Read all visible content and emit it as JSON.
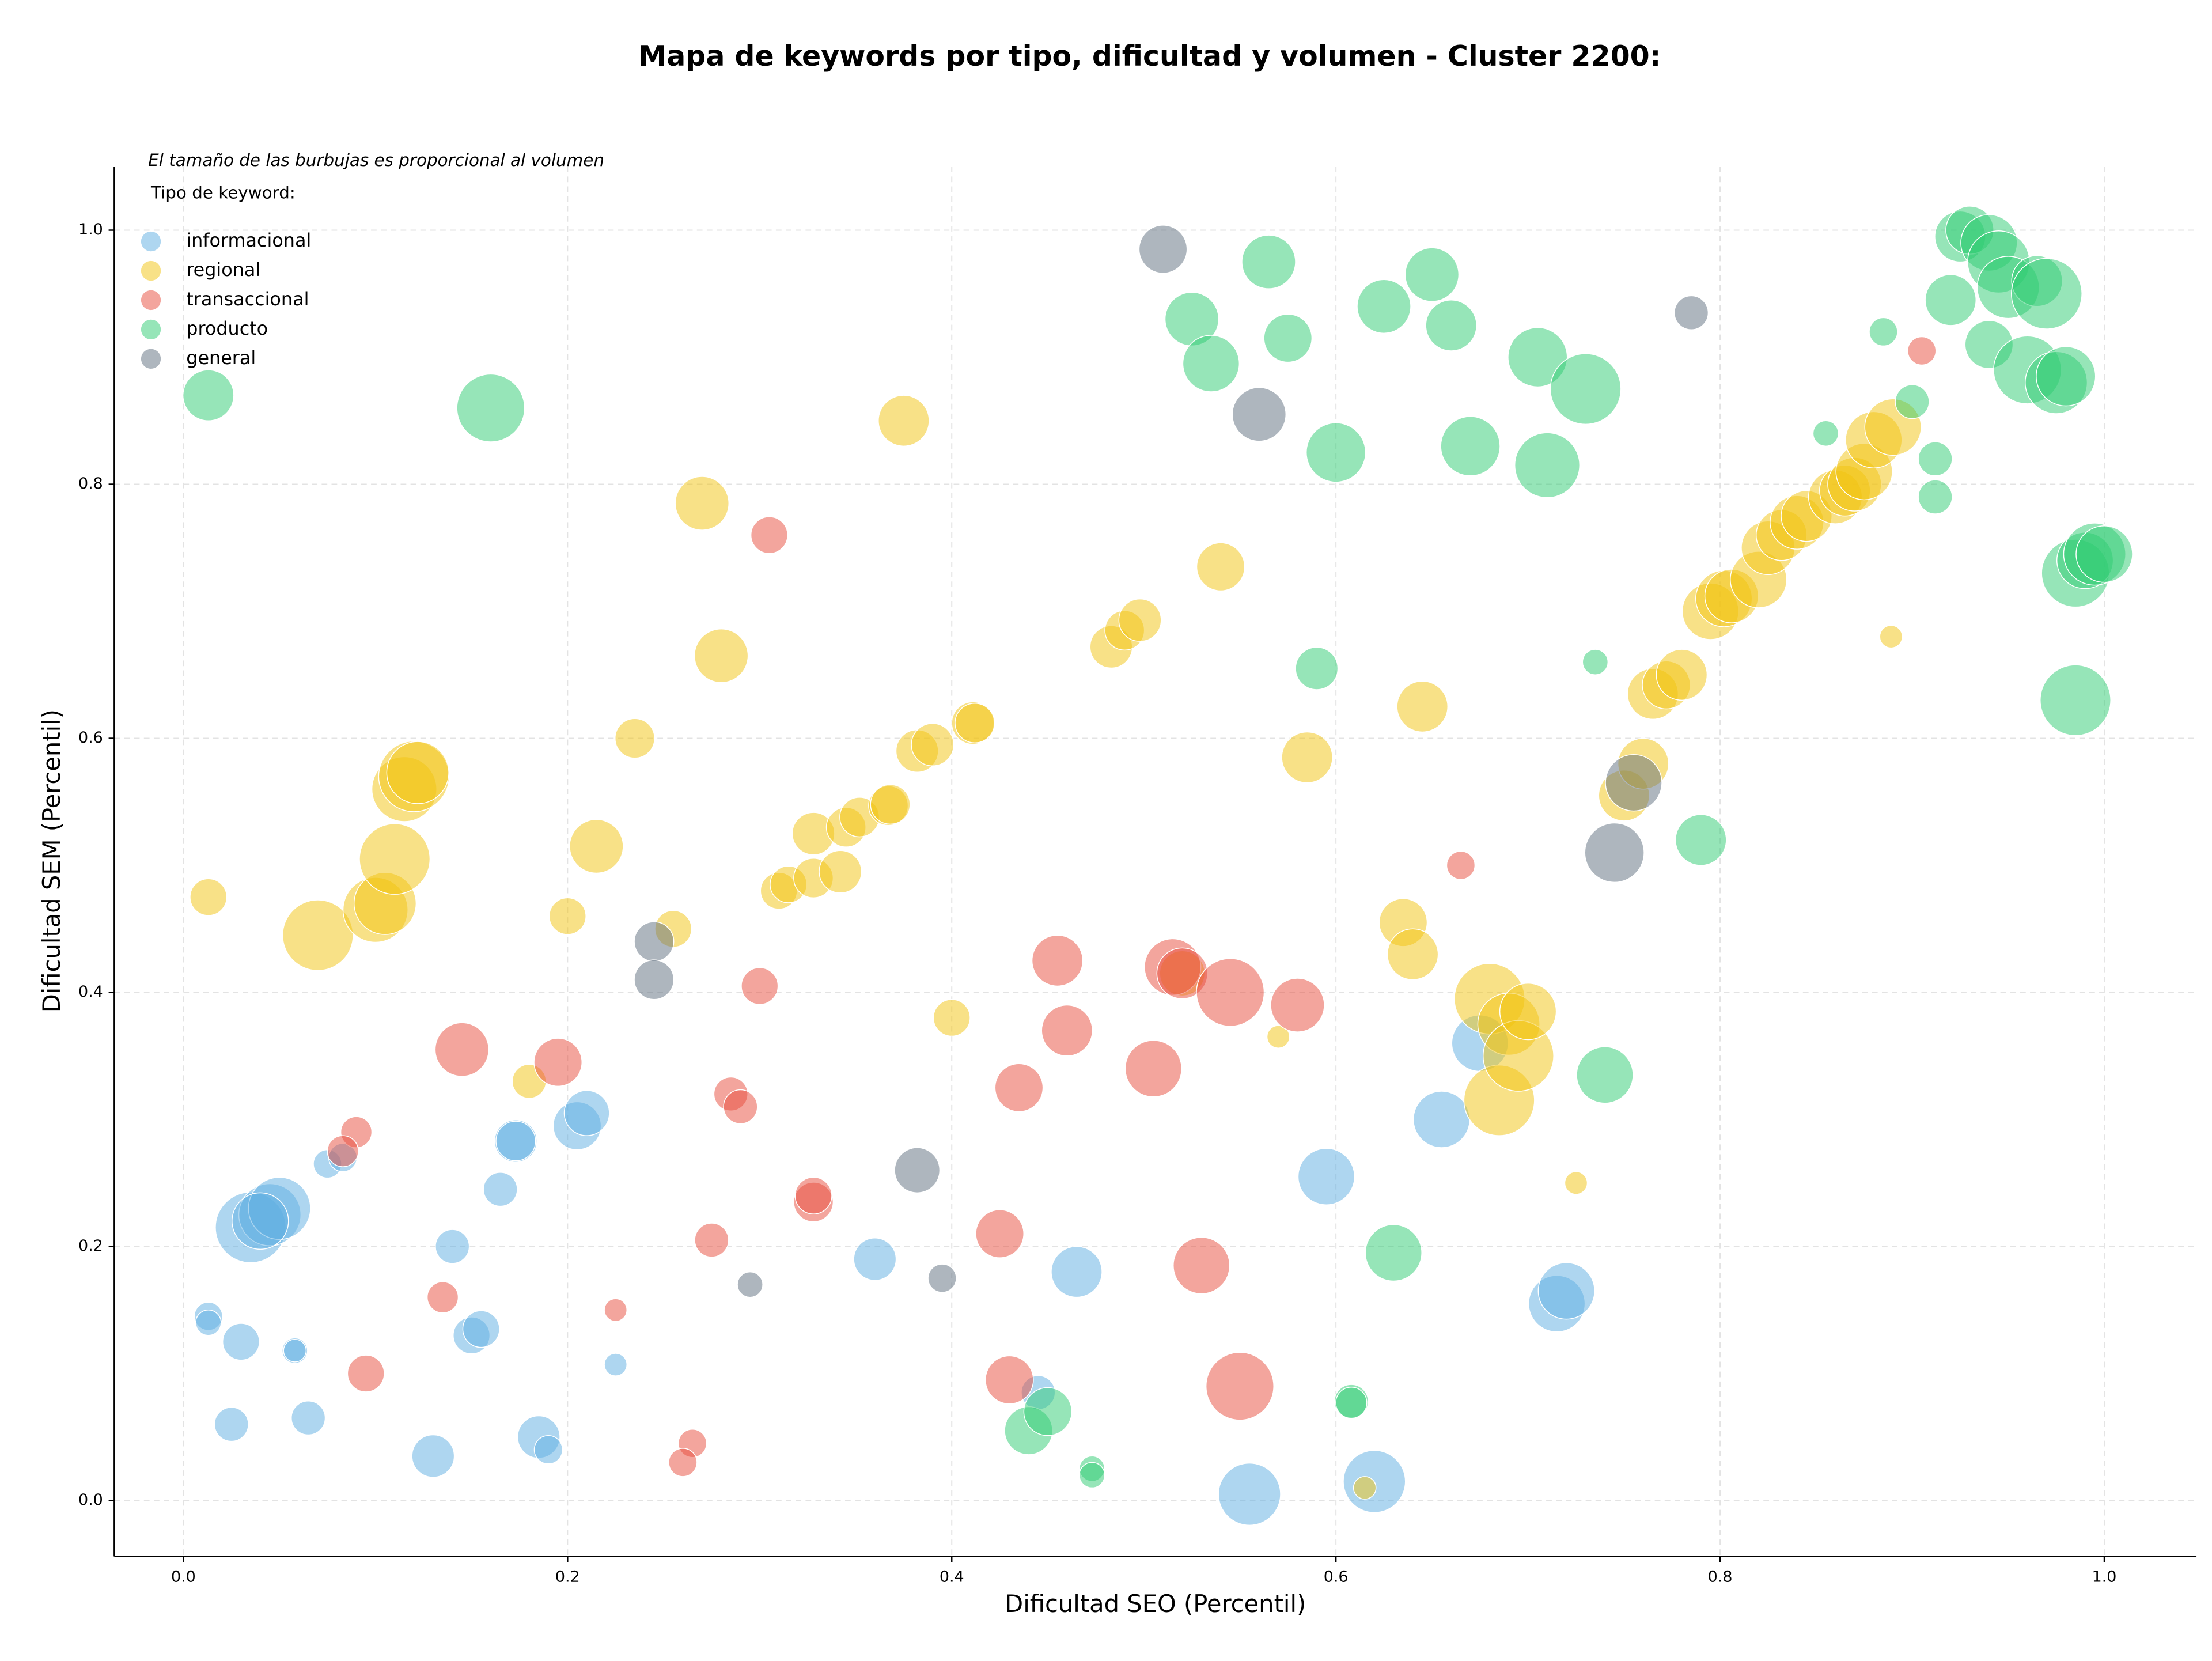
{
  "chart_data": {
    "type": "scatter",
    "title": "Mapa de keywords por tipo, dificultad y volumen - Cluster 2200:",
    "subtitle": "El tamaño de las burbujas es proporcional al volumen",
    "legend_title": "Tipo de keyword:",
    "x_label": "Dificultad SEO (Percentil)",
    "y_label": "Dificultad SEM (Percentil)",
    "xlim": [
      -0.036,
      1.048
    ],
    "ylim": [
      -0.044,
      1.05
    ],
    "xticks": [
      {
        "value": 0,
        "label": "0.0"
      },
      0.2,
      0.4,
      0.6,
      0.8,
      {
        "value": 1,
        "label": "1.0"
      }
    ],
    "yticks": [
      {
        "value": 0,
        "label": "0.0"
      },
      0.2,
      0.4,
      0.6,
      0.8,
      {
        "value": 1,
        "label": "1.0"
      }
    ],
    "grid": true,
    "legend": "upper left",
    "series": [
      {
        "name": "informacional",
        "color": "#5DADE2",
        "x": [
          0.035,
          0.045,
          0.05,
          0.04,
          0.013,
          0.013,
          0.03,
          0.058,
          0.058,
          0.025,
          0.065,
          0.13,
          0.075,
          0.083,
          0.14,
          0.165,
          0.173,
          0.173,
          0.205,
          0.21,
          0.15,
          0.155,
          0.185,
          0.19,
          0.225,
          0.36,
          0.465,
          0.445,
          0.555,
          0.62,
          0.595,
          0.655,
          0.675,
          0.715,
          0.72
        ],
        "values": [
          0.215,
          0.225,
          0.23,
          0.22,
          0.145,
          0.14,
          0.125,
          0.118,
          0.118,
          0.06,
          0.065,
          0.035,
          0.265,
          0.27,
          0.2,
          0.245,
          0.283,
          0.283,
          0.295,
          0.305,
          0.13,
          0.135,
          0.05,
          0.04,
          0.107,
          0.19,
          0.18,
          0.085,
          0.005,
          0.015,
          0.255,
          0.3,
          0.36,
          0.155,
          0.165
        ],
        "sizes": [
          625,
          484,
          484,
          400,
          100,
          81,
          169,
          81,
          64,
          144,
          144,
          225,
          100,
          100,
          144,
          144,
          225,
          196,
          289,
          256,
          169,
          169,
          225,
          100,
          64,
          225,
          324,
          144,
          484,
          484,
          400,
          400,
          400,
          400,
          400
        ]
      },
      {
        "name": "regional",
        "color": "#F1C40F",
        "x": [
          0.013,
          0.07,
          0.1,
          0.105,
          0.11,
          0.115,
          0.12,
          0.122,
          0.18,
          0.2,
          0.215,
          0.235,
          0.255,
          0.27,
          0.28,
          0.375,
          0.31,
          0.315,
          0.328,
          0.328,
          0.342,
          0.345,
          0.352,
          0.367,
          0.368,
          0.382,
          0.39,
          0.411,
          0.412,
          0.4,
          0.483,
          0.49,
          0.498,
          0.54,
          0.52,
          0.57,
          0.585,
          0.645,
          0.635,
          0.64,
          0.68,
          0.685,
          0.69,
          0.695,
          0.7,
          0.615,
          0.725,
          0.75,
          0.76,
          0.765,
          0.772,
          0.78,
          0.795,
          0.802,
          0.806,
          0.82,
          0.825,
          0.832,
          0.84,
          0.845,
          0.86,
          0.865,
          0.87,
          0.875,
          0.88,
          0.89,
          0.889
        ],
        "values": [
          0.475,
          0.445,
          0.465,
          0.47,
          0.505,
          0.56,
          0.57,
          0.573,
          0.33,
          0.46,
          0.515,
          0.6,
          0.45,
          0.785,
          0.665,
          0.85,
          0.48,
          0.485,
          0.49,
          0.525,
          0.495,
          0.53,
          0.538,
          0.547,
          0.548,
          0.59,
          0.595,
          0.612,
          0.612,
          0.38,
          0.672,
          0.685,
          0.693,
          0.735,
          0.415,
          0.365,
          0.585,
          0.625,
          0.455,
          0.43,
          0.395,
          0.315,
          0.375,
          0.35,
          0.385,
          0.01,
          0.25,
          0.555,
          0.58,
          0.635,
          0.642,
          0.65,
          0.7,
          0.71,
          0.712,
          0.725,
          0.75,
          0.76,
          0.77,
          0.775,
          0.79,
          0.795,
          0.8,
          0.81,
          0.835,
          0.845,
          0.68
        ],
        "sizes": [
          169,
          625,
          529,
          484,
          625,
          529,
          625,
          484,
          144,
          169,
          361,
          196,
          169,
          361,
          361,
          324,
          169,
          169,
          196,
          225,
          225,
          196,
          196,
          196,
          196,
          225,
          225,
          225,
          196,
          169,
          225,
          196,
          225,
          289,
          256,
          64,
          324,
          324,
          289,
          324,
          625,
          625,
          484,
          625,
          400,
          64,
          64,
          324,
          324,
          324,
          289,
          324,
          400,
          400,
          361,
          400,
          361,
          324,
          361,
          324,
          361,
          324,
          361,
          400,
          400,
          400,
          64
        ]
      },
      {
        "name": "transaccional",
        "color": "#E74C3C",
        "x": [
          0.305,
          0.3,
          0.145,
          0.195,
          0.09,
          0.083,
          0.135,
          0.095,
          0.225,
          0.275,
          0.285,
          0.29,
          0.265,
          0.26,
          0.328,
          0.328,
          0.435,
          0.425,
          0.43,
          0.455,
          0.46,
          0.505,
          0.515,
          0.52,
          0.545,
          0.53,
          0.55,
          0.58,
          0.665,
          0.905
        ],
        "values": [
          0.76,
          0.405,
          0.355,
          0.345,
          0.29,
          0.275,
          0.16,
          0.1,
          0.15,
          0.205,
          0.32,
          0.31,
          0.045,
          0.03,
          0.235,
          0.24,
          0.325,
          0.21,
          0.095,
          0.425,
          0.37,
          0.34,
          0.42,
          0.415,
          0.4,
          0.185,
          0.09,
          0.39,
          0.5,
          0.905
        ],
        "sizes": [
          169,
          169,
          361,
          289,
          121,
          121,
          121,
          169,
          64,
          144,
          144,
          144,
          100,
          100,
          196,
          169,
          289,
          289,
          289,
          324,
          324,
          400,
          400,
          324,
          576,
          400,
          576,
          361,
          100,
          100
        ]
      },
      {
        "name": "producto",
        "color": "#2ECC71",
        "x": [
          0.013,
          0.16,
          0.44,
          0.45,
          0.473,
          0.473,
          0.608,
          0.608,
          0.59,
          0.63,
          0.74,
          0.79,
          0.525,
          0.535,
          0.565,
          0.575,
          0.6,
          0.625,
          0.65,
          0.66,
          0.67,
          0.705,
          0.71,
          0.73,
          0.735,
          0.855,
          0.885,
          0.9,
          0.912,
          0.912,
          0.92,
          0.925,
          0.93,
          0.94,
          0.94,
          0.945,
          0.95,
          0.96,
          0.965,
          0.97,
          0.975,
          0.98,
          0.985,
          0.99,
          0.995,
          1.0,
          0.985
        ],
        "values": [
          0.87,
          0.86,
          0.055,
          0.07,
          0.025,
          0.02,
          0.078,
          0.077,
          0.655,
          0.195,
          0.335,
          0.52,
          0.93,
          0.895,
          0.975,
          0.915,
          0.825,
          0.94,
          0.965,
          0.925,
          0.83,
          0.9,
          0.815,
          0.875,
          0.66,
          0.84,
          0.92,
          0.865,
          0.82,
          0.79,
          0.945,
          0.995,
          1.0,
          0.91,
          0.99,
          0.975,
          0.955,
          0.89,
          0.96,
          0.95,
          0.88,
          0.885,
          0.73,
          0.74,
          0.745,
          0.745,
          0.63
        ],
        "sizes": [
          324,
          576,
          289,
          289,
          81,
          81,
          144,
          121,
          225,
          400,
          400,
          324,
          361,
          400,
          361,
          289,
          441,
          361,
          361,
          324,
          441,
          441,
          529,
          625,
          81,
          81,
          100,
          144,
          144,
          144,
          324,
          324,
          289,
          289,
          400,
          484,
          484,
          576,
          324,
          625,
          484,
          441,
          576,
          400,
          484,
          400,
          625
        ]
      },
      {
        "name": "general",
        "color": "#5D6D7E",
        "x": [
          0.51,
          0.56,
          0.785,
          0.245,
          0.245,
          0.382,
          0.295,
          0.395,
          0.745,
          0.755
        ],
        "values": [
          0.985,
          0.855,
          0.935,
          0.44,
          0.41,
          0.26,
          0.17,
          0.175,
          0.51,
          0.565
        ],
        "sizes": [
          289,
          361,
          144,
          196,
          196,
          256,
          81,
          100,
          441,
          400
        ]
      }
    ]
  }
}
